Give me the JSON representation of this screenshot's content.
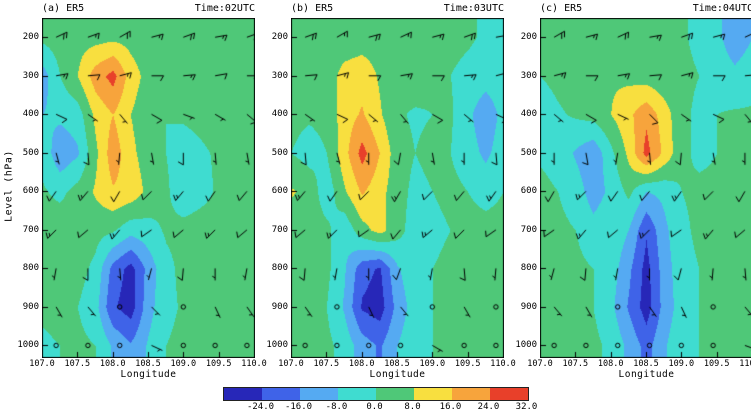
{
  "figure": {
    "y_axis_label": "Level (hPa)",
    "x_axis_label": "Longitude",
    "y_ticks": [
      "200",
      "300",
      "400",
      "500",
      "600",
      "700",
      "800",
      "900",
      "1000"
    ],
    "x_ticks": [
      "107.0",
      "107.5",
      "108.0",
      "108.5",
      "109.0",
      "109.5",
      "110.0"
    ],
    "barb_lons": [
      107.2,
      107.65,
      108.1,
      108.55,
      109.0,
      109.45,
      109.9
    ],
    "barb_levels": [
      200,
      300,
      400,
      500,
      600,
      700,
      800,
      900,
      1000
    ]
  },
  "colorbar": {
    "labels": [
      "-24.0",
      "-16.0",
      "-8.0",
      "0.0",
      "8.0",
      "16.0",
      "24.0",
      "32.0"
    ],
    "palette": [
      "#2727b8",
      "#3f63e8",
      "#55aaf2",
      "#3fdcd0",
      "#4fc878",
      "#f8df3f",
      "#f7a43c",
      "#e8402a",
      "#a50021"
    ]
  },
  "chart_data": [
    {
      "type": "heatmap",
      "label": "(a) ER5",
      "time": "Time:02UTC",
      "x": [
        107.0,
        107.25,
        107.5,
        107.75,
        108.0,
        108.25,
        108.5,
        108.75,
        109.0,
        109.25,
        109.5,
        109.75,
        110.0
      ],
      "y": [
        200,
        300,
        400,
        500,
        600,
        700,
        800,
        900,
        1000
      ],
      "xlabel": "Longitude",
      "ylabel": "Level (hPa)",
      "xlim": [
        107.0,
        110.0
      ],
      "ylim": [
        1000,
        200
      ],
      "levels": [
        -24,
        -16,
        -8,
        0,
        8,
        16,
        24,
        32
      ],
      "values": [
        [
          2,
          4,
          5,
          5,
          6,
          5,
          3,
          3,
          4,
          3,
          2,
          1,
          0
        ],
        [
          -12,
          0,
          8,
          20,
          27,
          12,
          5,
          3,
          2,
          1,
          0,
          1,
          2
        ],
        [
          -8,
          -6,
          -4,
          10,
          16,
          8,
          3,
          0,
          1,
          2,
          3,
          3,
          2
        ],
        [
          -2,
          -14,
          -9,
          6,
          21,
          10,
          4,
          0,
          -3,
          -1,
          1,
          2,
          2
        ],
        [
          1,
          -2,
          3,
          9,
          15,
          13,
          6,
          1,
          -4,
          -2,
          1,
          2,
          2
        ],
        [
          3,
          5,
          5,
          3,
          1,
          -5,
          -3,
          1,
          2,
          3,
          3,
          4,
          3
        ],
        [
          3,
          5,
          3,
          -2,
          -19,
          -27,
          -13,
          -2,
          2,
          3,
          4,
          4,
          3
        ],
        [
          1,
          2,
          0,
          -5,
          -23,
          -28,
          -11,
          -2,
          1,
          2,
          3,
          3,
          1
        ],
        [
          -1,
          0,
          2,
          0,
          -9,
          -15,
          -7,
          0,
          2,
          2,
          1,
          1,
          0
        ]
      ],
      "barbs": [
        [
          [
            65,
            20
          ],
          [
            70,
            15
          ],
          [
            60,
            20
          ],
          [
            75,
            15
          ],
          [
            70,
            20
          ],
          [
            80,
            15
          ],
          [
            70,
            20
          ]
        ],
        [
          [
            80,
            15
          ],
          [
            85,
            10
          ],
          [
            75,
            15
          ],
          [
            90,
            10
          ],
          [
            85,
            15
          ],
          [
            80,
            10
          ],
          [
            90,
            15
          ]
        ],
        [
          [
            115,
            10
          ],
          [
            125,
            5
          ],
          [
            140,
            5
          ],
          [
            120,
            10
          ],
          [
            110,
            5
          ],
          [
            120,
            5
          ],
          [
            130,
            10
          ]
        ],
        [
          [
            165,
            5
          ],
          [
            175,
            10
          ],
          [
            185,
            5
          ],
          [
            170,
            5
          ],
          [
            180,
            10
          ],
          [
            175,
            5
          ],
          [
            170,
            5
          ]
        ],
        [
          [
            215,
            10
          ],
          [
            220,
            15
          ],
          [
            210,
            10
          ],
          [
            225,
            10
          ],
          [
            220,
            15
          ],
          [
            215,
            10
          ],
          [
            220,
            10
          ]
        ],
        [
          [
            225,
            15
          ],
          [
            230,
            10
          ],
          [
            220,
            15
          ],
          [
            235,
            10
          ],
          [
            230,
            10
          ],
          [
            225,
            15
          ],
          [
            230,
            10
          ]
        ],
        [
          [
            190,
            5
          ],
          [
            180,
            10
          ],
          [
            175,
            5
          ],
          [
            195,
            5
          ],
          [
            185,
            10
          ],
          [
            180,
            5
          ],
          [
            190,
            5
          ]
        ],
        [
          [
            150,
            5
          ],
          [
            140,
            5
          ],
          [
            0,
            0
          ],
          [
            135,
            5
          ],
          [
            0,
            0
          ],
          [
            155,
            5
          ],
          [
            145,
            5
          ]
        ],
        [
          [
            0,
            0
          ],
          [
            120,
            2
          ],
          [
            0,
            0
          ],
          [
            115,
            5
          ],
          [
            0,
            0
          ],
          [
            0,
            0
          ],
          [
            125,
            2
          ]
        ]
      ]
    },
    {
      "type": "heatmap",
      "label": "(b) ER5",
      "time": "Time:03UTC",
      "x": [
        107.0,
        107.25,
        107.5,
        107.75,
        108.0,
        108.25,
        108.5,
        108.75,
        109.0,
        109.25,
        109.5,
        109.75,
        110.0
      ],
      "y": [
        200,
        300,
        400,
        500,
        600,
        700,
        800,
        900,
        1000
      ],
      "xlabel": "Longitude",
      "ylabel": "Level (hPa)",
      "xlim": [
        107.0,
        110.0
      ],
      "ylim": [
        1000,
        200
      ],
      "levels": [
        -24,
        -16,
        -8,
        0,
        8,
        16,
        24,
        32
      ],
      "values": [
        [
          3,
          4,
          3,
          3,
          4,
          4,
          3,
          2,
          2,
          2,
          1,
          -1,
          -3
        ],
        [
          1,
          2,
          4,
          11,
          13,
          7,
          3,
          4,
          2,
          0,
          -2,
          -4,
          -2
        ],
        [
          2,
          1,
          2,
          12,
          17,
          9,
          1,
          -1,
          0,
          1,
          -6,
          -14,
          -5
        ],
        [
          0,
          -3,
          0,
          13,
          27,
          16,
          3,
          0,
          2,
          0,
          -4,
          -10,
          -3
        ],
        [
          9,
          5,
          -5,
          7,
          17,
          11,
          3,
          -2,
          0,
          2,
          0,
          -2,
          0
        ],
        [
          3,
          4,
          2,
          -6,
          5,
          11,
          3,
          -4,
          -2,
          0,
          2,
          2,
          2
        ],
        [
          4,
          4,
          2,
          -7,
          -21,
          -25,
          -9,
          -2,
          0,
          2,
          2,
          3,
          2
        ],
        [
          2,
          2,
          0,
          -9,
          -25,
          -28,
          -13,
          -4,
          0,
          0,
          2,
          2,
          1
        ],
        [
          0,
          0,
          2,
          -3,
          -12,
          -17,
          -8,
          -2,
          0,
          0,
          0,
          1,
          0
        ]
      ],
      "barbs": [
        [
          [
            70,
            20
          ],
          [
            60,
            15
          ],
          [
            75,
            20
          ],
          [
            65,
            15
          ],
          [
            75,
            15
          ],
          [
            70,
            20
          ],
          [
            80,
            15
          ]
        ],
        [
          [
            85,
            10
          ],
          [
            75,
            15
          ],
          [
            90,
            10
          ],
          [
            80,
            15
          ],
          [
            90,
            10
          ],
          [
            85,
            15
          ],
          [
            75,
            10
          ]
        ],
        [
          [
            125,
            5
          ],
          [
            115,
            10
          ],
          [
            130,
            5
          ],
          [
            140,
            5
          ],
          [
            120,
            10
          ],
          [
            130,
            5
          ],
          [
            115,
            10
          ]
        ],
        [
          [
            175,
            10
          ],
          [
            165,
            5
          ],
          [
            180,
            5
          ],
          [
            190,
            10
          ],
          [
            170,
            5
          ],
          [
            180,
            5
          ],
          [
            175,
            10
          ]
        ],
        [
          [
            220,
            15
          ],
          [
            215,
            10
          ],
          [
            225,
            10
          ],
          [
            210,
            15
          ],
          [
            225,
            10
          ],
          [
            220,
            10
          ],
          [
            215,
            15
          ]
        ],
        [
          [
            230,
            10
          ],
          [
            225,
            15
          ],
          [
            235,
            10
          ],
          [
            220,
            10
          ],
          [
            230,
            15
          ],
          [
            225,
            10
          ],
          [
            235,
            10
          ]
        ],
        [
          [
            185,
            10
          ],
          [
            190,
            5
          ],
          [
            180,
            5
          ],
          [
            200,
            10
          ],
          [
            190,
            5
          ],
          [
            175,
            10
          ],
          [
            185,
            5
          ]
        ],
        [
          [
            145,
            5
          ],
          [
            0,
            0
          ],
          [
            155,
            5
          ],
          [
            140,
            5
          ],
          [
            0,
            0
          ],
          [
            150,
            5
          ],
          [
            0,
            0
          ]
        ],
        [
          [
            0,
            0
          ],
          [
            0,
            0
          ],
          [
            110,
            2
          ],
          [
            0,
            0
          ],
          [
            120,
            5
          ],
          [
            0,
            0
          ],
          [
            0,
            0
          ]
        ]
      ]
    },
    {
      "type": "heatmap",
      "label": "(c) ER5",
      "time": "Time:04UTC",
      "x": [
        107.0,
        107.25,
        107.5,
        107.75,
        108.0,
        108.25,
        108.5,
        108.75,
        109.0,
        109.25,
        109.5,
        109.75,
        110.0
      ],
      "y": [
        200,
        300,
        400,
        500,
        600,
        700,
        800,
        900,
        1000
      ],
      "xlabel": "Longitude",
      "ylabel": "Level (hPa)",
      "xlim": [
        107.0,
        110.0
      ],
      "ylim": [
        1000,
        200
      ],
      "levels": [
        -24,
        -16,
        -8,
        0,
        8,
        16,
        24,
        32
      ],
      "values": [
        [
          2,
          3,
          4,
          4,
          3,
          3,
          4,
          3,
          1,
          -2,
          -6,
          -13,
          -8
        ],
        [
          0,
          2,
          4,
          6,
          7,
          6,
          4,
          2,
          2,
          0,
          -3,
          -6,
          -3
        ],
        [
          -4,
          -1,
          1,
          3,
          8,
          14,
          22,
          12,
          2,
          -2,
          0,
          1,
          1
        ],
        [
          -1,
          -3,
          -9,
          -14,
          -2,
          10,
          27,
          14,
          2,
          -2,
          0,
          2,
          2
        ],
        [
          2,
          0,
          -4,
          -12,
          -6,
          2,
          -8,
          -6,
          0,
          2,
          2,
          2,
          2
        ],
        [
          4,
          2,
          0,
          -5,
          -2,
          -8,
          -23,
          -10,
          -2,
          2,
          3,
          2,
          2
        ],
        [
          3,
          4,
          2,
          0,
          -4,
          -14,
          -27,
          -12,
          -3,
          0,
          2,
          2,
          1
        ],
        [
          1,
          2,
          2,
          0,
          -6,
          -17,
          -28,
          -13,
          -4,
          0,
          0,
          2,
          1
        ],
        [
          0,
          0,
          2,
          2,
          -2,
          -10,
          -19,
          -9,
          -2,
          0,
          0,
          0,
          0
        ]
      ],
      "barbs": [
        [
          [
            60,
            20
          ],
          [
            75,
            15
          ],
          [
            65,
            20
          ],
          [
            80,
            15
          ],
          [
            70,
            20
          ],
          [
            75,
            15
          ],
          [
            65,
            15
          ]
        ],
        [
          [
            75,
            15
          ],
          [
            90,
            10
          ],
          [
            80,
            15
          ],
          [
            85,
            10
          ],
          [
            75,
            15
          ],
          [
            90,
            10
          ],
          [
            85,
            15
          ]
        ],
        [
          [
            130,
            5
          ],
          [
            120,
            10
          ],
          [
            115,
            5
          ],
          [
            135,
            10
          ],
          [
            125,
            5
          ],
          [
            115,
            10
          ],
          [
            140,
            5
          ]
        ],
        [
          [
            180,
            5
          ],
          [
            170,
            10
          ],
          [
            190,
            5
          ],
          [
            175,
            5
          ],
          [
            185,
            10
          ],
          [
            170,
            5
          ],
          [
            180,
            5
          ]
        ],
        [
          [
            210,
            10
          ],
          [
            225,
            15
          ],
          [
            215,
            10
          ],
          [
            220,
            10
          ],
          [
            215,
            15
          ],
          [
            225,
            10
          ],
          [
            210,
            10
          ]
        ],
        [
          [
            235,
            10
          ],
          [
            220,
            15
          ],
          [
            230,
            10
          ],
          [
            225,
            15
          ],
          [
            235,
            10
          ],
          [
            220,
            15
          ],
          [
            230,
            10
          ]
        ],
        [
          [
            195,
            5
          ],
          [
            185,
            10
          ],
          [
            190,
            5
          ],
          [
            180,
            5
          ],
          [
            195,
            10
          ],
          [
            185,
            5
          ],
          [
            175,
            5
          ]
        ],
        [
          [
            140,
            5
          ],
          [
            150,
            5
          ],
          [
            0,
            0
          ],
          [
            145,
            5
          ],
          [
            155,
            5
          ],
          [
            0,
            0
          ],
          [
            140,
            5
          ]
        ],
        [
          [
            0,
            0
          ],
          [
            115,
            2
          ],
          [
            0,
            0
          ],
          [
            0,
            0
          ],
          [
            125,
            2
          ],
          [
            0,
            0
          ],
          [
            110,
            5
          ]
        ]
      ]
    }
  ]
}
